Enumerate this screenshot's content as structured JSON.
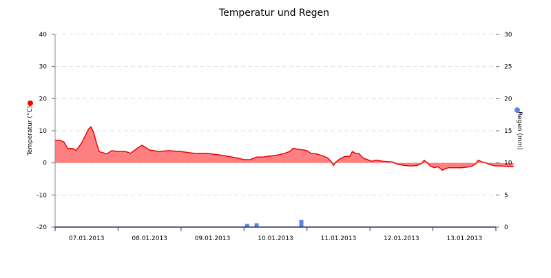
{
  "chart_data": {
    "type": "area",
    "title": "Temperatur und Regen",
    "y_left": {
      "label": "Temperatur (°C)",
      "range": [
        -20,
        40
      ],
      "ticks": [
        "40",
        "30",
        "20",
        "10",
        "0",
        "-10",
        "-20"
      ],
      "marker_color": "#ff0000"
    },
    "y_right": {
      "label": "Regen (mm)",
      "range": [
        0,
        30
      ],
      "ticks": [
        "30",
        "25",
        "20",
        "15",
        "10",
        "5",
        "0"
      ],
      "marker_color": "#5b84e8"
    },
    "x_range": [
      0,
      7
    ],
    "x_ticks": [
      {
        "x": 0.5,
        "label": "07.01.2013"
      },
      {
        "x": 1.5,
        "label": "08.01.2013"
      },
      {
        "x": 2.5,
        "label": "09.01.2013"
      },
      {
        "x": 3.5,
        "label": "10.01.2013"
      },
      {
        "x": 4.5,
        "label": "11.01.2013"
      },
      {
        "x": 5.5,
        "label": "12.01.2013"
      },
      {
        "x": 6.5,
        "label": "13.01.2013"
      }
    ],
    "grid": "horizontal dashed",
    "colors": {
      "temperature_line": "#ee0000",
      "temperature_fill": "#ff8080",
      "rain_bars": "#5b84e8",
      "baseline": "#1f2d5c"
    },
    "series": [
      {
        "points": [
          [
            0.0,
            7.0
          ],
          [
            0.08,
            7.0
          ],
          [
            0.14,
            6.5
          ],
          [
            0.2,
            4.5
          ],
          [
            0.28,
            4.5
          ],
          [
            0.33,
            3.8
          ],
          [
            0.38,
            5.0
          ],
          [
            0.43,
            6.5
          ],
          [
            0.48,
            8.5
          ],
          [
            0.53,
            10.5
          ],
          [
            0.57,
            11.2
          ],
          [
            0.61,
            9.5
          ],
          [
            0.66,
            6.0
          ],
          [
            0.7,
            3.5
          ],
          [
            0.75,
            3.2
          ],
          [
            0.82,
            2.8
          ],
          [
            0.9,
            3.8
          ],
          [
            1.0,
            3.5
          ],
          [
            1.12,
            3.5
          ],
          [
            1.2,
            3.0
          ],
          [
            1.3,
            4.5
          ],
          [
            1.38,
            5.5
          ],
          [
            1.5,
            4.0
          ],
          [
            1.65,
            3.5
          ],
          [
            1.8,
            3.8
          ],
          [
            2.0,
            3.5
          ],
          [
            2.2,
            3.0
          ],
          [
            2.4,
            3.0
          ],
          [
            2.6,
            2.5
          ],
          [
            2.75,
            2.0
          ],
          [
            2.9,
            1.5
          ],
          [
            3.0,
            1.0
          ],
          [
            3.1,
            1.0
          ],
          [
            3.2,
            1.8
          ],
          [
            3.3,
            1.8
          ],
          [
            3.45,
            2.2
          ],
          [
            3.55,
            2.5
          ],
          [
            3.65,
            3.0
          ],
          [
            3.72,
            3.5
          ],
          [
            3.78,
            4.5
          ],
          [
            3.84,
            4.3
          ],
          [
            3.95,
            4.0
          ],
          [
            4.0,
            3.8
          ],
          [
            4.06,
            3.0
          ],
          [
            4.15,
            2.8
          ],
          [
            4.25,
            2.2
          ],
          [
            4.33,
            1.5
          ],
          [
            4.38,
            0.5
          ],
          [
            4.42,
            -0.8
          ],
          [
            4.46,
            0.3
          ],
          [
            4.52,
            1.2
          ],
          [
            4.6,
            2.0
          ],
          [
            4.68,
            2.0
          ],
          [
            4.72,
            3.5
          ],
          [
            4.77,
            3.0
          ],
          [
            4.83,
            2.8
          ],
          [
            4.89,
            1.5
          ],
          [
            4.96,
            1.0
          ],
          [
            5.02,
            0.5
          ],
          [
            5.1,
            0.8
          ],
          [
            5.2,
            0.5
          ],
          [
            5.35,
            0.3
          ],
          [
            5.45,
            -0.5
          ],
          [
            5.55,
            -0.8
          ],
          [
            5.65,
            -1.0
          ],
          [
            5.75,
            -0.8
          ],
          [
            5.82,
            -0.2
          ],
          [
            5.86,
            0.8
          ],
          [
            5.91,
            0.0
          ],
          [
            5.96,
            -1.0
          ],
          [
            6.02,
            -1.5
          ],
          [
            6.08,
            -1.2
          ],
          [
            6.15,
            -2.3
          ],
          [
            6.2,
            -1.8
          ],
          [
            6.25,
            -1.5
          ],
          [
            6.35,
            -1.5
          ],
          [
            6.45,
            -1.5
          ],
          [
            6.55,
            -1.3
          ],
          [
            6.62,
            -1.0
          ],
          [
            6.68,
            -0.3
          ],
          [
            6.72,
            0.8
          ],
          [
            6.78,
            0.3
          ],
          [
            6.84,
            0.0
          ],
          [
            6.9,
            -0.5
          ],
          [
            7.0,
            -1.0
          ],
          [
            7.1,
            -1.0
          ],
          [
            7.2,
            -1.2
          ],
          [
            7.28,
            -1.2
          ]
        ]
      },
      {
        "bars": [
          {
            "x": 3.05,
            "value": 0.5
          },
          {
            "x": 3.2,
            "value": 0.6
          },
          {
            "x": 3.91,
            "value": 1.1
          }
        ]
      }
    ]
  }
}
